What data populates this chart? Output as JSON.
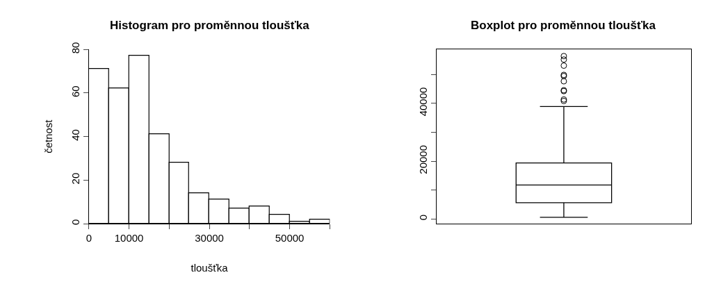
{
  "chart_data": [
    {
      "type": "histogram",
      "title": "Histogram pro proměnnou tloušťka",
      "xlabel": "tloušťka",
      "ylabel": "četnost",
      "bins": [
        0,
        5000,
        10000,
        15000,
        20000,
        25000,
        30000,
        35000,
        40000,
        45000,
        50000,
        55000,
        60000
      ],
      "values": [
        71,
        62,
        77,
        41,
        28,
        14,
        11,
        7,
        8,
        4,
        1,
        2
      ],
      "color": "#ffffff",
      "xlim": [
        0,
        60000
      ],
      "xticks": [
        0,
        10000,
        {
          "value": 20000,
          "label": null
        },
        30000,
        {
          "value": 40000,
          "label": null
        },
        50000,
        {
          "value": 60000,
          "label": null
        }
      ],
      "ylim": [
        0,
        80
      ],
      "yticks": [
        0,
        20,
        40,
        60,
        80
      ]
    },
    {
      "type": "box",
      "title": "Boxplot pro proměnnou tloušťka",
      "categories": [
        null
      ],
      "boxes": [
        {
          "low": 630,
          "q1": 5650,
          "median": 11760,
          "q3": 19400,
          "high": 38900,
          "outliers": [
            56300,
            55100,
            53000,
            49800,
            49400,
            47600,
            44500,
            44200,
            41300,
            40800
          ]
        }
      ],
      "color": "#ffffff",
      "ylim": [
        -1600,
        58600
      ],
      "yticks": [
        0,
        {
          "value": 10000,
          "label": null
        },
        20000,
        {
          "value": 30000,
          "label": null
        },
        40000,
        {
          "value": 50000,
          "label": null
        }
      ],
      "tick_labels": "y"
    }
  ]
}
